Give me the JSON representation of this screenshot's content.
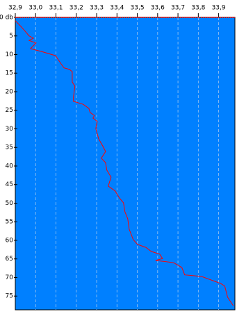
{
  "chart_data": {
    "type": "line",
    "depth": [
      0.9,
      2.4,
      3.7,
      5.0,
      5.6,
      6.2,
      6.9,
      8.4,
      9.2,
      10.3,
      12.5,
      13.6,
      14.0,
      14.6,
      17.4,
      18.5,
      21.5,
      22.6,
      23.4,
      24.5,
      25.6,
      26.4,
      27.1,
      28.0,
      29.9,
      32.7,
      34.6,
      36.1,
      37.9,
      39.1,
      41.1,
      43.0,
      45.4,
      46.7,
      48.6,
      49.9,
      52.3,
      54.2,
      57.0,
      59.8,
      61.1,
      61.9,
      63.0,
      63.7,
      64.9,
      65.4,
      66.0,
      67.3,
      69.3,
      69.7,
      71.6,
      72.3,
      75.3,
      77.6
    ],
    "values": [
      32.9,
      32.927,
      32.948,
      32.968,
      32.989,
      32.968,
      33.002,
      32.975,
      33.03,
      33.098,
      33.125,
      33.14,
      33.166,
      33.18,
      33.18,
      33.193,
      33.186,
      33.186,
      33.234,
      33.262,
      33.268,
      33.289,
      33.282,
      33.303,
      33.296,
      33.31,
      33.33,
      33.344,
      33.323,
      33.344,
      33.35,
      33.371,
      33.357,
      33.391,
      33.412,
      33.432,
      33.439,
      33.453,
      33.46,
      33.48,
      33.501,
      33.542,
      33.569,
      33.61,
      33.624,
      33.59,
      33.678,
      33.719,
      33.733,
      33.815,
      33.91,
      33.93,
      33.944,
      33.972
    ],
    "color": "#ff0000",
    "background": "#0080ff",
    "xlim": [
      32.9,
      33.98
    ],
    "xticks": [
      {
        "value": 32.9,
        "label": "32,9"
      },
      {
        "value": 33.0,
        "label": "33,0"
      },
      {
        "value": 33.1,
        "label": "33,1"
      },
      {
        "value": 33.2,
        "label": "33,2"
      },
      {
        "value": 33.3,
        "label": "33,3"
      },
      {
        "value": 33.4,
        "label": "33,4"
      },
      {
        "value": 33.5,
        "label": "33,5"
      },
      {
        "value": 33.6,
        "label": "33,6"
      },
      {
        "value": 33.7,
        "label": "33,7"
      },
      {
        "value": 33.8,
        "label": "33,8"
      },
      {
        "value": 33.9,
        "label": "33,9"
      }
    ],
    "ylim": [
      0,
      78.7
    ],
    "yticks": [
      {
        "value": 0,
        "label": "0 db"
      },
      5,
      10,
      15,
      20,
      25,
      30,
      35,
      40,
      45,
      50,
      55,
      60,
      65,
      70,
      75
    ],
    "grid": true
  }
}
